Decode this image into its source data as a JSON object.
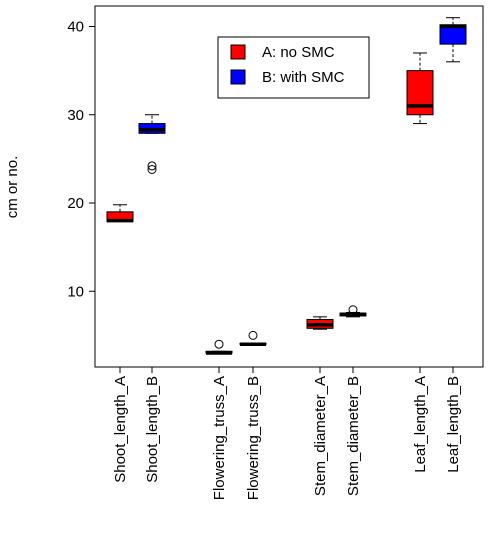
{
  "chart_data": {
    "type": "boxplot",
    "title": "",
    "xlabel": "",
    "ylabel": "cm or no.",
    "ylim": [
      0,
      42
    ],
    "yticks": [
      10,
      20,
      30,
      40
    ],
    "grid": false,
    "legend_position": "top-center",
    "legend": [
      {
        "label": "A: no SMC",
        "color": "#ff0000"
      },
      {
        "label": "B: with SMC",
        "color": "#0000ff"
      }
    ],
    "categories": [
      "Shoot_length_A",
      "Shoot_length_B",
      "Flowering_truss_A",
      "Flowering_truss_B",
      "Stem_diameter_A",
      "Stem_diameter_B",
      "Leaf_length_A",
      "Leaf_length_B"
    ],
    "boxes": [
      {
        "category": "Shoot_length_A",
        "group": "A",
        "whisker_low": 17.9,
        "q1": 17.9,
        "median": 18.0,
        "q3": 19.0,
        "whisker_high": 19.8,
        "outliers": []
      },
      {
        "category": "Shoot_length_B",
        "group": "B",
        "whisker_low": 27.9,
        "q1": 27.9,
        "median": 28.3,
        "q3": 29.0,
        "whisker_high": 30.0,
        "outliers": [
          23.8,
          24.2
        ]
      },
      {
        "category": "Flowering_truss_A",
        "group": "A",
        "whisker_low": 3.0,
        "q1": 3.0,
        "median": 3.0,
        "q3": 3.2,
        "whisker_high": 3.2,
        "outliers": [
          4.0
        ]
      },
      {
        "category": "Flowering_truss_B",
        "group": "B",
        "whisker_low": 4.0,
        "q1": 4.0,
        "median": 4.0,
        "q3": 4.1,
        "whisker_high": 4.1,
        "outliers": [
          5.0
        ]
      },
      {
        "category": "Stem_diameter_A",
        "group": "A",
        "whisker_low": 5.7,
        "q1": 5.8,
        "median": 6.2,
        "q3": 6.8,
        "whisker_high": 7.1,
        "outliers": []
      },
      {
        "category": "Stem_diameter_B",
        "group": "B",
        "whisker_low": 7.1,
        "q1": 7.2,
        "median": 7.4,
        "q3": 7.5,
        "whisker_high": 7.6,
        "outliers": [
          7.9
        ]
      },
      {
        "category": "Leaf_length_A",
        "group": "A",
        "whisker_low": 29.0,
        "q1": 30.0,
        "median": 31.0,
        "q3": 35.0,
        "whisker_high": 37.0,
        "outliers": []
      },
      {
        "category": "Leaf_length_B",
        "group": "B",
        "whisker_low": 36.0,
        "q1": 38.0,
        "median": 40.0,
        "q3": 40.2,
        "whisker_high": 41.0,
        "outliers": []
      }
    ]
  }
}
